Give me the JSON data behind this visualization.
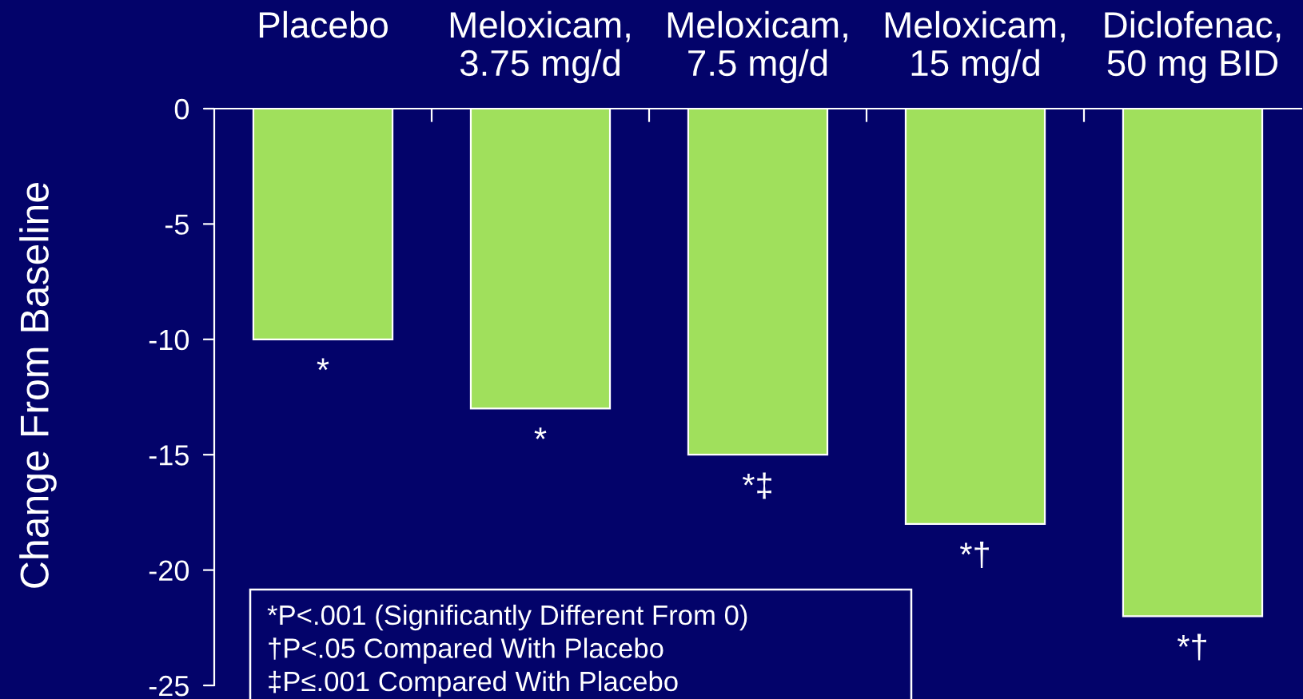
{
  "chart_data": {
    "type": "bar",
    "ylabel": "Change From Baseline",
    "categories": [
      "Placebo",
      "Meloxicam,\n3.75 mg/d",
      "Meloxicam,\n7.5 mg/d",
      "Meloxicam,\n15 mg/d",
      "Diclofenac,\n50 mg BID"
    ],
    "values": [
      -10,
      -13,
      -15,
      -18,
      -22
    ],
    "color": "#a0e05c",
    "ylim": [
      -25,
      0
    ],
    "yticks": [
      0,
      -5,
      -10,
      -15,
      -20,
      -25
    ],
    "annotations": [
      {
        "text": "*",
        "x": "Placebo",
        "y": -10
      },
      {
        "text": "*",
        "x": "Meloxicam,\n3.75 mg/d",
        "y": -13
      },
      {
        "text": "*‡",
        "x": "Meloxicam,\n7.5 mg/d",
        "y": -15
      },
      {
        "text": "*†",
        "x": "Meloxicam,\n15 mg/d",
        "y": -18
      },
      {
        "text": "*†",
        "x": "Diclofenac,\n50 mg BID",
        "y": -22
      },
      "*P<.001 (Significantly Different From 0)",
      "†P<.05 Compared With Placebo",
      "‡P≤.001 Compared With Placebo"
    ]
  }
}
